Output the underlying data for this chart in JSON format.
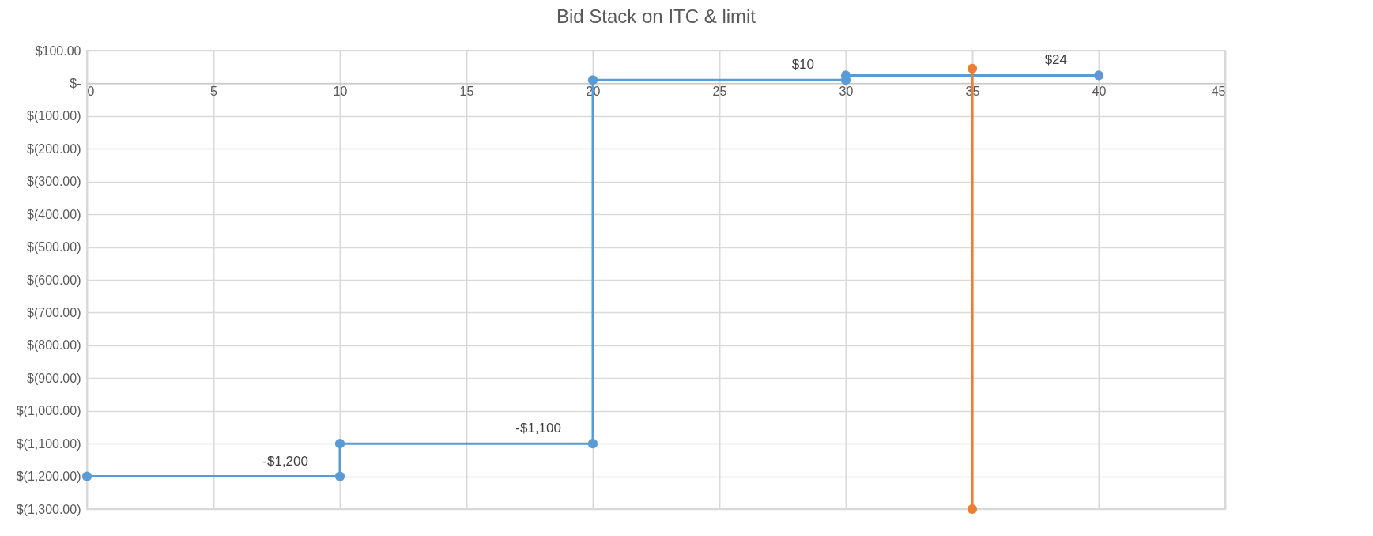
{
  "chart_data": {
    "type": "line",
    "title": "Bid Stack on ITC  & limit",
    "series": [
      {
        "color": "#5b9bd5",
        "x": [
          0,
          10,
          10,
          20,
          20,
          30,
          30,
          40
        ],
        "values": [
          -1200,
          -1200,
          -1100,
          -1100,
          10,
          10,
          24,
          24
        ]
      },
      {
        "color": "#ed7d31",
        "x": [
          35,
          35
        ],
        "values": [
          -1300,
          45
        ]
      }
    ],
    "xlim": [
      0,
      45
    ],
    "xticks": [
      0,
      5,
      10,
      15,
      20,
      25,
      30,
      35,
      40,
      45
    ],
    "ylim": [
      -1300,
      100
    ],
    "yticks": [
      {
        "value": -1300,
        "label": "$(1,300.00)"
      },
      {
        "value": -1200,
        "label": "$(1,200.00)"
      },
      {
        "value": -1100,
        "label": "$(1,100.00)"
      },
      {
        "value": -1000,
        "label": "$(1,000.00)"
      },
      {
        "value": -900,
        "label": "$(900.00)"
      },
      {
        "value": -800,
        "label": "$(800.00)"
      },
      {
        "value": -700,
        "label": "$(700.00)"
      },
      {
        "value": -600,
        "label": "$(600.00)"
      },
      {
        "value": -500,
        "label": "$(500.00)"
      },
      {
        "value": -400,
        "label": "$(400.00)"
      },
      {
        "value": -300,
        "label": "$(300.00)"
      },
      {
        "value": -200,
        "label": "$(200.00)"
      },
      {
        "value": -100,
        "label": "$(100.00)"
      },
      {
        "value": 0,
        "label": "$-"
      },
      {
        "value": 100,
        "label": "$100.00"
      }
    ],
    "annotations": [
      {
        "text": "-$1,200",
        "x": 10,
        "y": -1200
      },
      {
        "text": "-$1,100",
        "x": 20,
        "y": -1100
      },
      {
        "text": "$10",
        "x": 30,
        "y": 10
      },
      {
        "text": "$24",
        "x": 40,
        "y": 24
      }
    ],
    "grid": true,
    "marker": "circle",
    "line_style": "solid"
  }
}
